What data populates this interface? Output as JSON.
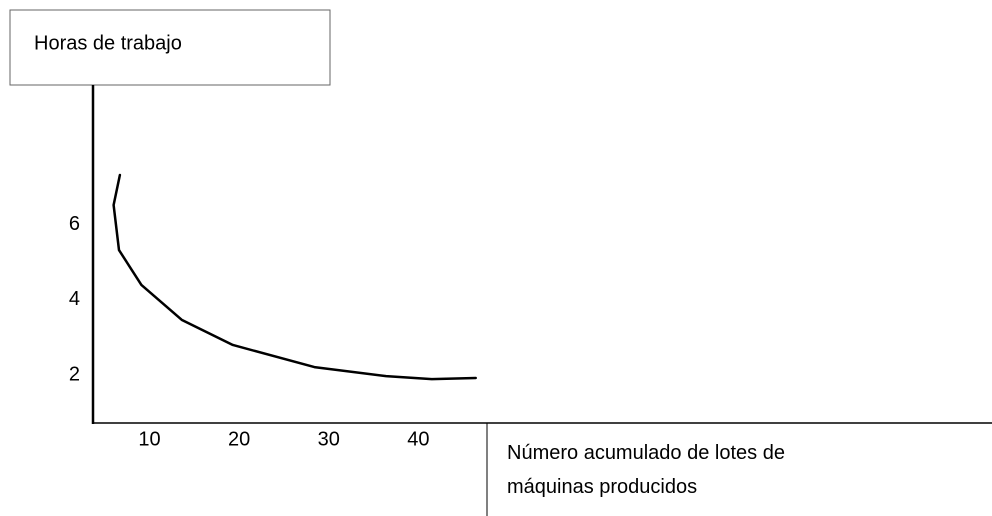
{
  "chart_data": {
    "type": "line",
    "ylabel": "Horas de trabajo",
    "xlabel": "Número acumulado de lotes de máquinas producidos",
    "x": [
      6.7,
      6.0,
      6.6,
      9.1,
      13.6,
      19.3,
      28.4,
      36.4,
      41.5,
      46.4
    ],
    "series": [
      {
        "color": "#000000",
        "values": [
          7.33,
          6.53,
          5.33,
          4.4,
          3.47,
          2.8,
          2.21,
          1.97,
          1.89,
          1.92
        ]
      }
    ],
    "xlim": [
      3.7,
      104
    ],
    "xticks": [
      10,
      20,
      30,
      40
    ],
    "ylim": [
      0.72,
      9.73
    ],
    "yticks": [
      2,
      4,
      6
    ]
  }
}
